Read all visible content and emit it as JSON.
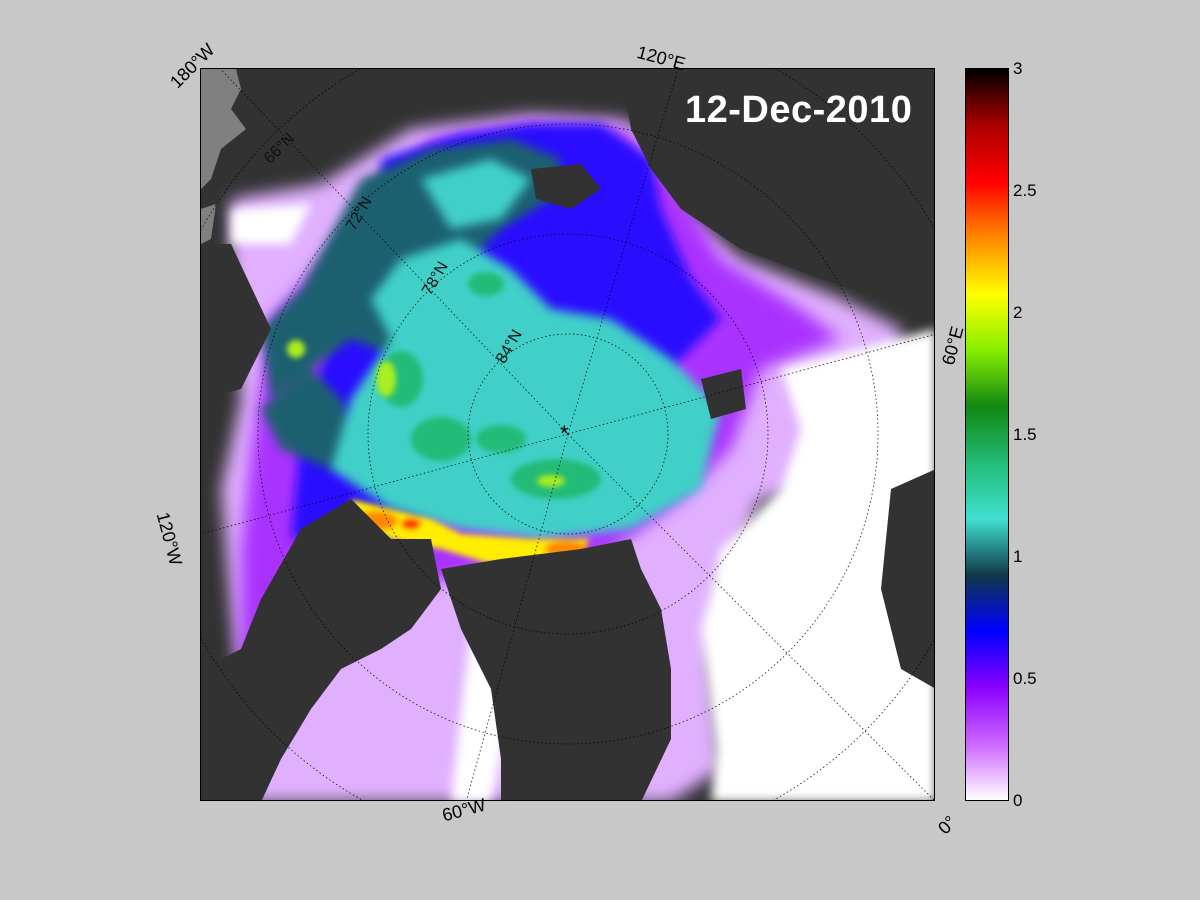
{
  "map": {
    "date": "12-Dec-2010",
    "pole_marker": "*",
    "longitude_labels": [
      "180°W",
      "120°E",
      "60°E",
      "120°W",
      "60°W",
      "0°"
    ],
    "latitude_labels": [
      "66°N",
      "72°N",
      "78°N",
      "84°N"
    ],
    "colors": {
      "land": "#323232",
      "ice_shelf_grey": "#808080",
      "open_water": "#ffffff",
      "background": "#c8c8c8"
    }
  },
  "colorbar": {
    "ticks": [
      "3",
      "2.5",
      "2",
      "1.5",
      "1",
      "0.5",
      "0"
    ],
    "min": 0,
    "max": 3,
    "colormap_stops": [
      "#ffffff",
      "#cc66ff",
      "#8a00ff",
      "#0000ff",
      "#103848",
      "#40e0d0",
      "#22bb77",
      "#118811",
      "#88ee00",
      "#ffff00",
      "#ff8800",
      "#ff0000",
      "#aa0000",
      "#000000"
    ]
  }
}
